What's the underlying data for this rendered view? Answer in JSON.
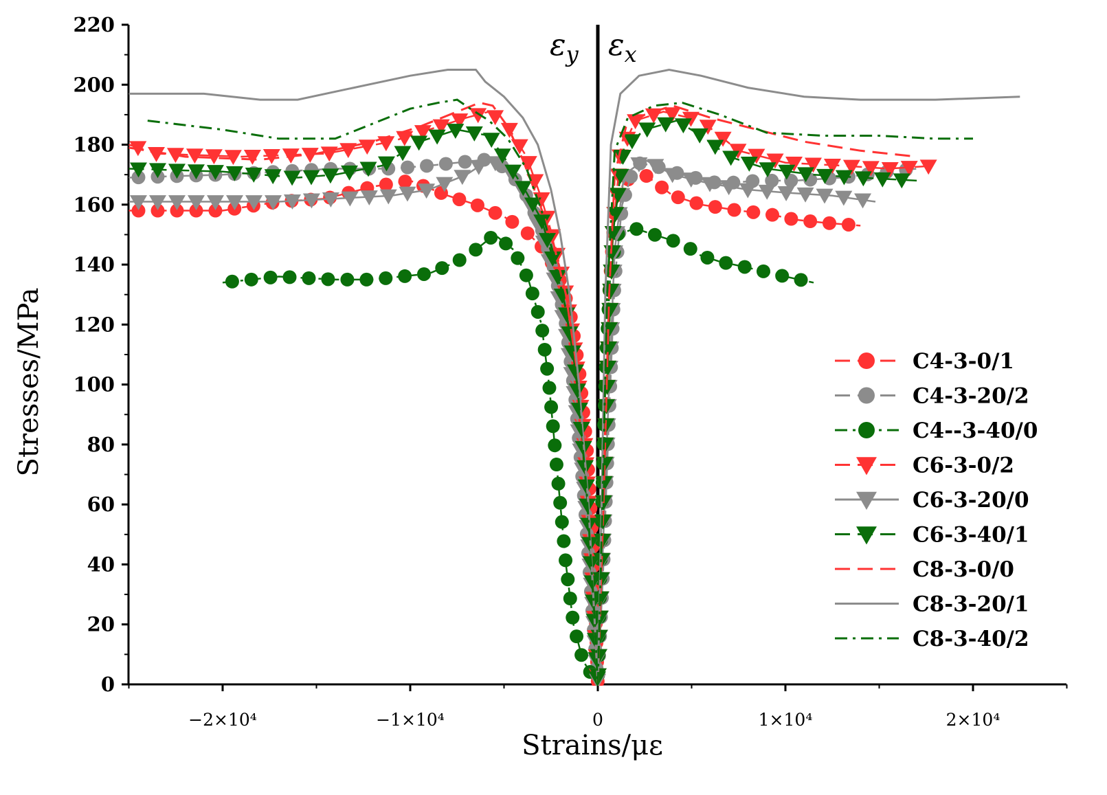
{
  "chart_data": {
    "type": "line",
    "title": "",
    "xlabel": "Strains/με",
    "ylabel": "Stresses/MPa",
    "xlim": [
      -25000,
      25000
    ],
    "ylim": [
      0,
      220
    ],
    "grid": false,
    "legend_position": "right",
    "annotations": [
      {
        "text": "ε",
        "sub": "y",
        "x": -1000,
        "y": 207
      },
      {
        "text": "ε",
        "sub": "x",
        "x": 1400,
        "y": 207
      }
    ],
    "x_ticks": [
      {
        "value": -20000,
        "label": "−2×10⁴"
      },
      {
        "value": -10000,
        "label": "−1×10⁴"
      },
      {
        "value": 0,
        "label": "0"
      },
      {
        "value": 10000,
        "label": "1×10⁴"
      },
      {
        "value": 20000,
        "label": "2×10⁴"
      }
    ],
    "y_ticks": [
      {
        "value": 0,
        "label": "0"
      },
      {
        "value": 20,
        "label": "20"
      },
      {
        "value": 40,
        "label": "40"
      },
      {
        "value": 60,
        "label": "60"
      },
      {
        "value": 80,
        "label": "80"
      },
      {
        "value": 100,
        "label": "100"
      },
      {
        "value": 120,
        "label": "120"
      },
      {
        "value": 140,
        "label": "140"
      },
      {
        "value": 160,
        "label": "160"
      },
      {
        "value": 180,
        "label": "180"
      },
      {
        "value": 200,
        "label": "200"
      },
      {
        "value": 220,
        "label": "220"
      }
    ],
    "series": [
      {
        "name": "C4-3-0/1",
        "color": "#ff3333",
        "dash": "long",
        "marker": "circle",
        "left": [
          [
            -25000,
            158
          ],
          [
            -20000,
            158
          ],
          [
            -17000,
            161
          ],
          [
            -14500,
            162
          ],
          [
            -12000,
            166
          ],
          [
            -10000,
            168
          ],
          [
            -8000,
            163
          ],
          [
            -6500,
            160
          ],
          [
            -5000,
            156
          ],
          [
            -4000,
            152
          ],
          [
            -3000,
            146
          ],
          [
            -2200,
            138
          ],
          [
            -1500,
            125
          ],
          [
            -1000,
            105
          ],
          [
            -600,
            80
          ],
          [
            -300,
            50
          ],
          [
            -100,
            20
          ],
          [
            0,
            0
          ]
        ],
        "right": [
          [
            0,
            0
          ],
          [
            200,
            40
          ],
          [
            400,
            90
          ],
          [
            600,
            130
          ],
          [
            900,
            158
          ],
          [
            1400,
            168
          ],
          [
            2500,
            170
          ],
          [
            4000,
            163
          ],
          [
            5500,
            160
          ],
          [
            7500,
            158
          ],
          [
            9000,
            157
          ],
          [
            10500,
            155
          ],
          [
            12000,
            154
          ],
          [
            14000,
            153
          ]
        ]
      },
      {
        "name": "C4-3-20/2",
        "color": "#8c8c8c",
        "dash": "long",
        "marker": "circle",
        "left": [
          [
            -25000,
            169
          ],
          [
            -20000,
            170
          ],
          [
            -17000,
            171
          ],
          [
            -14000,
            172
          ],
          [
            -11000,
            172
          ],
          [
            -9000,
            173
          ],
          [
            -7500,
            174
          ],
          [
            -6000,
            175
          ],
          [
            -4800,
            172
          ],
          [
            -3800,
            163
          ],
          [
            -3000,
            152
          ],
          [
            -2300,
            138
          ],
          [
            -1700,
            120
          ],
          [
            -1200,
            95
          ],
          [
            -700,
            60
          ],
          [
            -300,
            25
          ],
          [
            0,
            0
          ]
        ],
        "right": [
          [
            0,
            0
          ],
          [
            300,
            40
          ],
          [
            600,
            90
          ],
          [
            900,
            135
          ],
          [
            1300,
            160
          ],
          [
            2000,
            174
          ],
          [
            3000,
            173
          ],
          [
            4500,
            170
          ],
          [
            6500,
            167
          ],
          [
            8500,
            168
          ],
          [
            10500,
            168
          ],
          [
            13000,
            169
          ],
          [
            15500,
            171
          ],
          [
            17000,
            172
          ]
        ]
      },
      {
        "name": "C4--3-40/0",
        "color": "#0a6e0a",
        "dash": "dashdot",
        "marker": "circle",
        "left": [
          [
            -20000,
            134
          ],
          [
            -17000,
            136
          ],
          [
            -14000,
            135
          ],
          [
            -12000,
            135
          ],
          [
            -10500,
            136
          ],
          [
            -9000,
            137
          ],
          [
            -7500,
            141
          ],
          [
            -6500,
            145
          ],
          [
            -5500,
            150
          ],
          [
            -4500,
            145
          ],
          [
            -3700,
            135
          ],
          [
            -3000,
            120
          ],
          [
            -2600,
            100
          ],
          [
            -2300,
            80
          ],
          [
            -2000,
            60
          ],
          [
            -1700,
            40
          ],
          [
            -1300,
            20
          ],
          [
            -800,
            8
          ],
          [
            0,
            0
          ]
        ],
        "right": [
          [
            0,
            0
          ],
          [
            150,
            40
          ],
          [
            300,
            80
          ],
          [
            450,
            110
          ],
          [
            650,
            135
          ],
          [
            1000,
            150
          ],
          [
            2000,
            152
          ],
          [
            3000,
            150
          ],
          [
            4500,
            147
          ],
          [
            5500,
            143
          ],
          [
            6500,
            141
          ],
          [
            8000,
            139
          ],
          [
            10000,
            136
          ],
          [
            11500,
            134
          ]
        ]
      },
      {
        "name": "C6-3-0/2",
        "color": "#ff3333",
        "dash": "long",
        "marker": "tri-down",
        "left": [
          [
            -25000,
            180
          ],
          [
            -23500,
            177
          ],
          [
            -19000,
            176
          ],
          [
            -14500,
            177
          ],
          [
            -11000,
            181
          ],
          [
            -9000,
            185
          ],
          [
            -7000,
            189
          ],
          [
            -5800,
            191
          ],
          [
            -4800,
            186
          ],
          [
            -3800,
            176
          ],
          [
            -3000,
            162
          ],
          [
            -2300,
            147
          ],
          [
            -1700,
            130
          ],
          [
            -1200,
            110
          ],
          [
            -700,
            80
          ],
          [
            -300,
            40
          ],
          [
            0,
            0
          ]
        ],
        "right": [
          [
            0,
            0
          ],
          [
            250,
            50
          ],
          [
            500,
            100
          ],
          [
            800,
            150
          ],
          [
            1200,
            177
          ],
          [
            2000,
            188
          ],
          [
            3500,
            191
          ],
          [
            5500,
            188
          ],
          [
            7500,
            178
          ],
          [
            10000,
            174
          ],
          [
            13000,
            173
          ],
          [
            15500,
            172
          ],
          [
            18000,
            173
          ]
        ]
      },
      {
        "name": "C6-3-20/0",
        "color": "#8c8c8c",
        "dash": "solid",
        "marker": "tri-down",
        "left": [
          [
            -25000,
            161
          ],
          [
            -21000,
            161
          ],
          [
            -17000,
            161
          ],
          [
            -14000,
            162
          ],
          [
            -11000,
            163
          ],
          [
            -9000,
            165
          ],
          [
            -7000,
            170
          ],
          [
            -5800,
            175
          ],
          [
            -4800,
            172
          ],
          [
            -3800,
            163
          ],
          [
            -3000,
            150
          ],
          [
            -2300,
            135
          ],
          [
            -1700,
            118
          ],
          [
            -1200,
            95
          ],
          [
            -700,
            65
          ],
          [
            -300,
            30
          ],
          [
            0,
            0
          ]
        ],
        "right": [
          [
            0,
            0
          ],
          [
            300,
            50
          ],
          [
            600,
            100
          ],
          [
            900,
            145
          ],
          [
            1400,
            170
          ],
          [
            2500,
            175
          ],
          [
            4000,
            170
          ],
          [
            6000,
            167
          ],
          [
            8000,
            165
          ],
          [
            10000,
            164
          ],
          [
            12500,
            163
          ],
          [
            14800,
            161
          ]
        ]
      },
      {
        "name": "C6-3-40/1",
        "color": "#0a6e0a",
        "dash": "long",
        "marker": "tri-down",
        "left": [
          [
            -25000,
            172
          ],
          [
            -20000,
            171
          ],
          [
            -16000,
            169
          ],
          [
            -14000,
            170
          ],
          [
            -11500,
            173
          ],
          [
            -9500,
            181
          ],
          [
            -7500,
            185
          ],
          [
            -5800,
            183
          ],
          [
            -4800,
            174
          ],
          [
            -3800,
            164
          ],
          [
            -3000,
            155
          ],
          [
            -2300,
            140
          ],
          [
            -1700,
            125
          ],
          [
            -1200,
            105
          ],
          [
            -700,
            75
          ],
          [
            -300,
            35
          ],
          [
            0,
            0
          ]
        ],
        "right": [
          [
            0,
            0
          ],
          [
            250,
            50
          ],
          [
            500,
            100
          ],
          [
            800,
            150
          ],
          [
            1400,
            179
          ],
          [
            2500,
            185
          ],
          [
            4200,
            188
          ],
          [
            5500,
            183
          ],
          [
            7000,
            176
          ],
          [
            9000,
            172
          ],
          [
            11500,
            170
          ],
          [
            14000,
            169
          ],
          [
            17000,
            168
          ]
        ]
      },
      {
        "name": "C8-3-0/0",
        "color": "#ff3333",
        "dash": "long",
        "marker": "none",
        "left": [
          [
            -25000,
            179
          ],
          [
            -22000,
            176
          ],
          [
            -18000,
            175
          ],
          [
            -15000,
            177
          ],
          [
            -12000,
            181
          ],
          [
            -9500,
            186
          ],
          [
            -7500,
            191
          ],
          [
            -6300,
            194
          ],
          [
            -5600,
            193
          ],
          [
            -4800,
            186
          ],
          [
            -4000,
            175
          ],
          [
            -3200,
            162
          ],
          [
            -2400,
            148
          ],
          [
            -1700,
            130
          ],
          [
            -1000,
            100
          ],
          [
            -500,
            60
          ],
          [
            -200,
            25
          ],
          [
            0,
            0
          ]
        ],
        "right": [
          [
            0,
            0
          ],
          [
            300,
            60
          ],
          [
            600,
            130
          ],
          [
            900,
            170
          ],
          [
            1500,
            186
          ],
          [
            2500,
            190
          ],
          [
            4000,
            193
          ],
          [
            6000,
            189
          ],
          [
            8500,
            185
          ],
          [
            11000,
            181
          ],
          [
            14000,
            178
          ],
          [
            17000,
            176
          ]
        ]
      },
      {
        "name": "C8-3-20/1",
        "color": "#8c8c8c",
        "dash": "solid",
        "marker": "none",
        "left": [
          [
            -25000,
            197
          ],
          [
            -21000,
            197
          ],
          [
            -18000,
            195
          ],
          [
            -16000,
            195
          ],
          [
            -13000,
            199
          ],
          [
            -10000,
            203
          ],
          [
            -8000,
            205
          ],
          [
            -6500,
            205
          ],
          [
            -6000,
            201
          ],
          [
            -5000,
            196
          ],
          [
            -4000,
            189
          ],
          [
            -3200,
            180
          ],
          [
            -2500,
            165
          ],
          [
            -2000,
            150
          ],
          [
            -1500,
            130
          ],
          [
            -1000,
            100
          ],
          [
            -500,
            60
          ],
          [
            -200,
            25
          ],
          [
            0,
            0
          ]
        ],
        "right": [
          [
            0,
            0
          ],
          [
            200,
            60
          ],
          [
            400,
            130
          ],
          [
            700,
            180
          ],
          [
            1200,
            197
          ],
          [
            2200,
            203
          ],
          [
            3800,
            205
          ],
          [
            5500,
            203
          ],
          [
            8000,
            199
          ],
          [
            11000,
            196
          ],
          [
            14000,
            195
          ],
          [
            18000,
            195
          ],
          [
            22500,
            196
          ]
        ]
      },
      {
        "name": "C8-3-40/2",
        "color": "#0a6e0a",
        "dash": "dashdot",
        "marker": "none",
        "left": [
          [
            -24000,
            188
          ],
          [
            -20000,
            185
          ],
          [
            -17000,
            182
          ],
          [
            -14000,
            182
          ],
          [
            -12000,
            187
          ],
          [
            -10000,
            192
          ],
          [
            -8500,
            194
          ],
          [
            -7500,
            195
          ],
          [
            -6800,
            192
          ],
          [
            -5800,
            188
          ],
          [
            -4800,
            182
          ],
          [
            -3800,
            172
          ],
          [
            -3000,
            158
          ],
          [
            -2300,
            142
          ],
          [
            -1700,
            125
          ],
          [
            -1100,
            100
          ],
          [
            -600,
            65
          ],
          [
            -200,
            25
          ],
          [
            0,
            0
          ]
        ],
        "right": [
          [
            0,
            0
          ],
          [
            250,
            60
          ],
          [
            500,
            130
          ],
          [
            900,
            178
          ],
          [
            1600,
            189
          ],
          [
            3000,
            193
          ],
          [
            4500,
            194
          ],
          [
            6500,
            190
          ],
          [
            9000,
            184
          ],
          [
            12000,
            183
          ],
          [
            15000,
            183
          ],
          [
            18000,
            182
          ],
          [
            20000,
            182
          ]
        ]
      }
    ]
  }
}
